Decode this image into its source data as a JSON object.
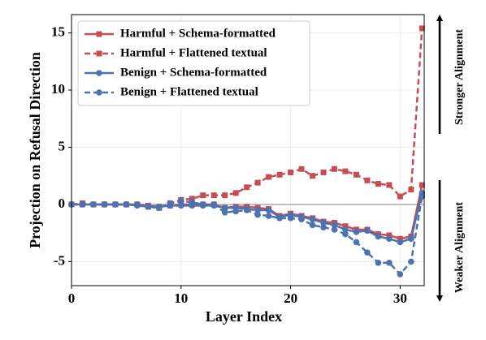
{
  "chart_data": {
    "type": "line",
    "xlabel": "Layer Index",
    "ylabel": "Projection on Refusal Direction",
    "x": [
      0,
      1,
      2,
      3,
      4,
      5,
      6,
      7,
      8,
      9,
      10,
      11,
      12,
      13,
      14,
      15,
      16,
      17,
      18,
      19,
      20,
      21,
      22,
      23,
      24,
      25,
      26,
      27,
      28,
      29,
      30,
      31,
      32
    ],
    "series": [
      {
        "name": "Harmful + Schema-formatted",
        "color": "#c44e52",
        "style": "solid",
        "marker": "square",
        "values": [
          0,
          0,
          0,
          0,
          0,
          0,
          0,
          -0.1,
          -0.2,
          -0.1,
          0,
          0,
          0,
          0,
          -0.3,
          -0.2,
          -0.2,
          -0.3,
          -0.4,
          -1.0,
          -0.8,
          -1.0,
          -1.2,
          -1.5,
          -1.6,
          -1.9,
          -2.2,
          -2.2,
          -2.6,
          -2.7,
          -3.0,
          -2.8,
          1.7
        ]
      },
      {
        "name": "Harmful + Flattened textual",
        "color": "#c44e52",
        "style": "dashed",
        "marker": "square",
        "values": [
          0,
          0.1,
          0,
          0,
          0,
          0,
          0,
          -0.2,
          -0.3,
          0.1,
          0.4,
          0.5,
          0.8,
          0.8,
          0.8,
          1.0,
          1.5,
          1.9,
          2.4,
          2.6,
          2.8,
          3.1,
          2.5,
          2.8,
          3.1,
          2.9,
          2.6,
          2.1,
          1.8,
          1.7,
          0.7,
          1.3,
          15.4
        ]
      },
      {
        "name": "Benign + Schema-formatted",
        "color": "#4c72b0",
        "style": "solid",
        "marker": "circle",
        "values": [
          0,
          0,
          0,
          0,
          0,
          0,
          -0.1,
          -0.2,
          -0.2,
          -0.1,
          -0.1,
          -0.1,
          -0.1,
          -0.1,
          -0.3,
          -0.3,
          -0.4,
          -0.5,
          -0.5,
          -1.1,
          -0.9,
          -1.1,
          -1.3,
          -1.6,
          -1.8,
          -2.2,
          -2.4,
          -2.3,
          -2.8,
          -3.0,
          -3.3,
          -3.0,
          1.0
        ]
      },
      {
        "name": "Benign + Flattened textual",
        "color": "#4c72b0",
        "style": "dashed",
        "marker": "circle",
        "values": [
          0,
          0,
          0,
          0,
          0,
          0,
          0,
          -0.2,
          -0.3,
          0.1,
          0.3,
          0.2,
          0.0,
          0.0,
          -0.7,
          -0.6,
          -0.5,
          -0.9,
          -1.0,
          -1.2,
          -1.2,
          -1.3,
          -1.8,
          -2.0,
          -2.2,
          -2.6,
          -3.3,
          -4.2,
          -5.1,
          -5.1,
          -6.1,
          -5.0,
          0.7
        ]
      }
    ],
    "xlim": [
      0,
      32.2
    ],
    "ylim": [
      -7.1,
      16.6
    ],
    "xticks": [
      0,
      10,
      20,
      30
    ],
    "yticks": [
      -5,
      0,
      5,
      10,
      15
    ],
    "grid": true,
    "hline": 0,
    "legend": "upper left",
    "annotations": [
      "Stronger Alignment",
      "Weaker Alignment"
    ]
  }
}
